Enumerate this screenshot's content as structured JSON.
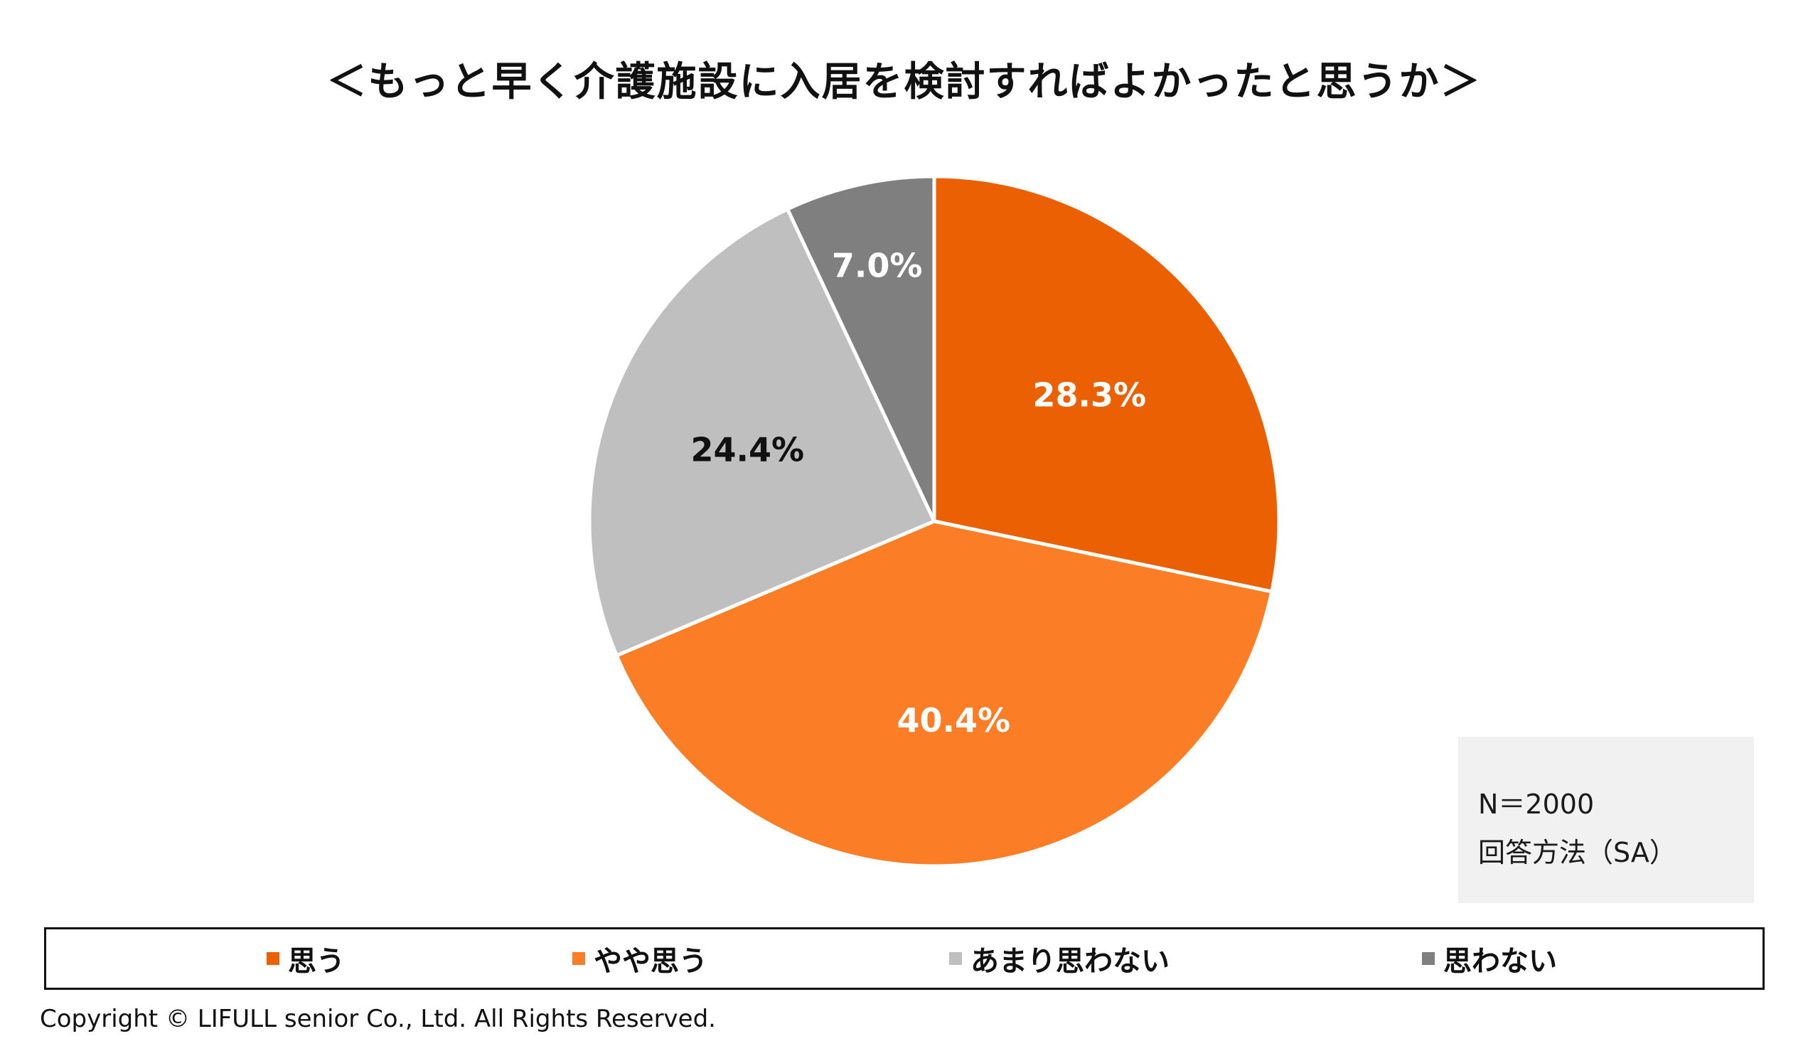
{
  "chart_data": {
    "type": "pie",
    "title": "＜もっと早く介護施設に入居を検討すればよかったと思うか＞",
    "categories": [
      "思う",
      "やや思う",
      "あまり思わない",
      "思わない"
    ],
    "values": [
      28.3,
      40.4,
      24.4,
      7.0
    ],
    "value_labels": [
      "28.3%",
      "40.4%",
      "24.4%",
      "7.0%"
    ],
    "colors": [
      "#ec6004",
      "#fb7d26",
      "#bfbfbf",
      "#7f7f7f"
    ],
    "label_colors": [
      "#ffffff",
      "#ffffff",
      "#111111",
      "#ffffff"
    ],
    "start_angle": "12 o'clock",
    "direction": "clockwise",
    "legend_position": "bottom"
  },
  "info": {
    "n": "N＝2000",
    "method": "回答方法（SA）"
  },
  "copyright": "Copyright © LIFULL senior Co., Ltd. All Rights Reserved."
}
